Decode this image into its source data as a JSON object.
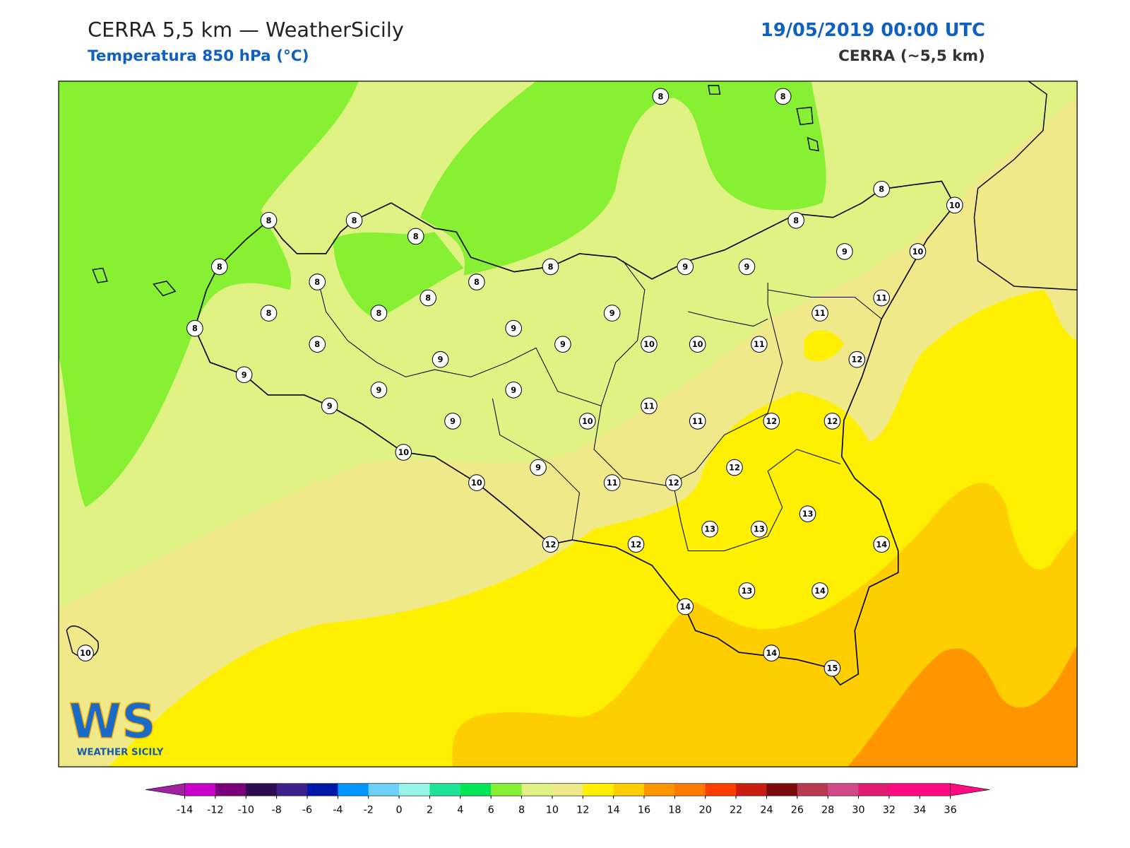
{
  "header": {
    "title": "CERRA 5,5 km — WeatherSicily",
    "subtitle": "Temperatura 850 hPa (°C)",
    "date": "19/05/2019 00:00 UTC",
    "model": "CERRA (~5,5 km)"
  },
  "stations": {
    "values": [
      8,
      8,
      8,
      10,
      8,
      8,
      8,
      8,
      8,
      8,
      9,
      9,
      9,
      10,
      8,
      8,
      8,
      11,
      8,
      8,
      9,
      11,
      8,
      9,
      8,
      9,
      10,
      10,
      11,
      9,
      12,
      9,
      9,
      9,
      9,
      11,
      9,
      10,
      11,
      12,
      12,
      10,
      9,
      12,
      10,
      11,
      12,
      13,
      13,
      13,
      12,
      12,
      14,
      14,
      13,
      14,
      14,
      15,
      10
    ]
  },
  "colorbar": {
    "ticks": [
      -14,
      -12,
      -10,
      -8,
      -6,
      -4,
      -2,
      0,
      2,
      4,
      6,
      8,
      10,
      12,
      14,
      16,
      18,
      20,
      22,
      24,
      26,
      28,
      30,
      32,
      34,
      36
    ],
    "colors": [
      "#c800c8",
      "#7a007a",
      "#2c0b52",
      "#3b1f8a",
      "#0018a8",
      "#0096ff",
      "#6cd0f8",
      "#96f5e8",
      "#1ee396",
      "#00e658",
      "#88f032",
      "#e0f284",
      "#f0e98a",
      "#fef000",
      "#ffce00",
      "#ff9600",
      "#ff7800",
      "#ff3c00",
      "#c81e0f",
      "#7a0a0a",
      "#b93a50",
      "#d04a88",
      "#e01a6e",
      "#ff0a82",
      "#ff0a82"
    ],
    "under": "#a020a0",
    "over": "#ff0a82"
  },
  "logo": {
    "mark": "WS",
    "name": "WEATHER SICILY"
  }
}
